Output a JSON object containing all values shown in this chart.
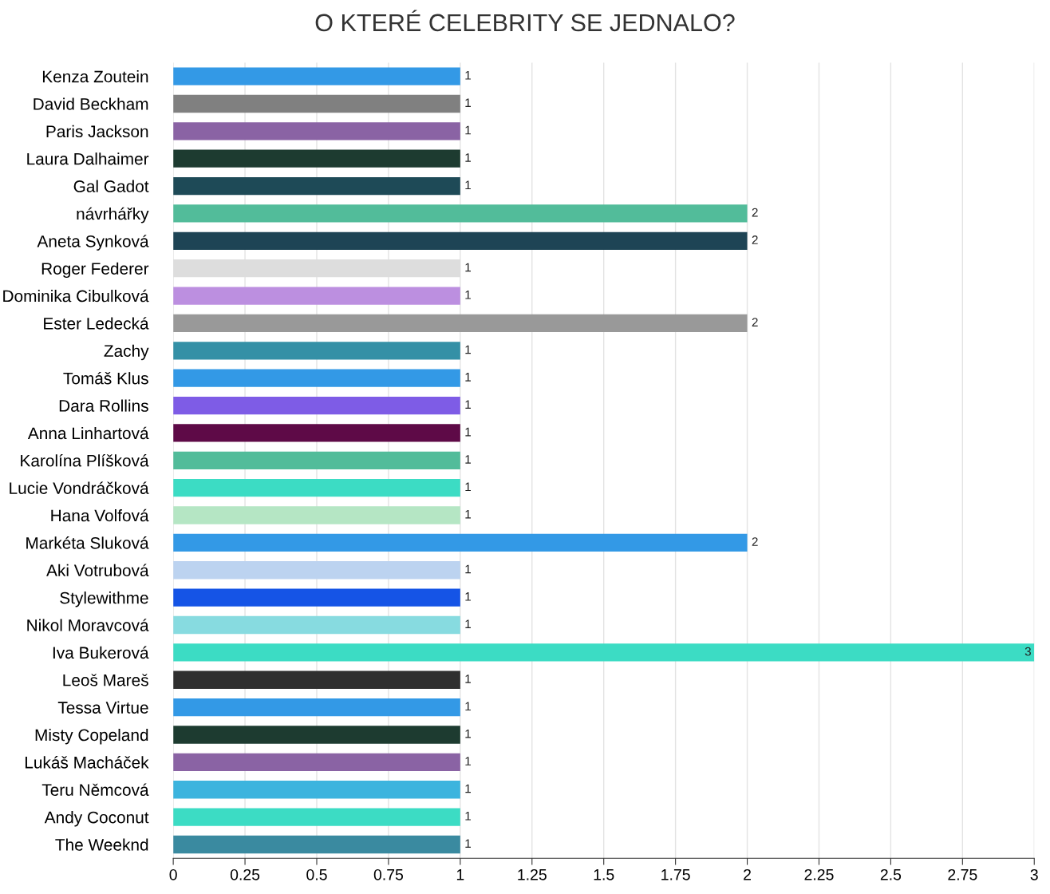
{
  "chart_data": {
    "type": "bar",
    "orientation": "horizontal",
    "title": "O KTERÉ CELEBRITY SE JEDNALO?",
    "categories": [
      "Kenza Zoutein",
      "David Beckham",
      "Paris Jackson",
      "Laura Dalhaimer",
      "Gal Gadot",
      "návrhářky",
      "Aneta Synková",
      "Roger Federer",
      "Dominika Cibulková",
      "Ester Ledecká",
      "Zachy",
      "Tomáš Klus",
      "Dara Rollins",
      "Anna Linhartová",
      "Karolína Plíšková",
      "Lucie Vondráčková",
      "Hana Volfová",
      "Markéta Sluková",
      "Aki Votrubová",
      "Stylewithme",
      "Nikol Moravcová",
      "Iva Bukerová",
      "Leoš Mareš",
      "Tessa Virtue",
      "Misty Copeland",
      "Lukáš Macháček",
      "Teru Němcová",
      "Andy Coconut",
      "The Weeknd"
    ],
    "values": [
      1,
      1,
      1,
      1,
      1,
      2,
      2,
      1,
      1,
      2,
      1,
      1,
      1,
      1,
      1,
      1,
      1,
      2,
      1,
      1,
      1,
      3,
      1,
      1,
      1,
      1,
      1,
      1,
      1
    ],
    "colors": [
      "#3399e6",
      "#808080",
      "#8a63a4",
      "#1d3b30",
      "#1e4a57",
      "#52bc9a",
      "#1e4455",
      "#dddddd",
      "#bc8fe0",
      "#999999",
      "#3490a6",
      "#3399e6",
      "#7e5ce6",
      "#5e0a47",
      "#52bc9a",
      "#3cdcc4",
      "#b5e6c4",
      "#3399e6",
      "#bcd3f0",
      "#1554e6",
      "#87dbe0",
      "#3cdcc4",
      "#2f2f2f",
      "#3399e6",
      "#1d3b30",
      "#8a63a4",
      "#3cb4de",
      "#3cdcc4",
      "#3a8aa0"
    ],
    "xlim": [
      0,
      3
    ],
    "xticks": [
      0,
      0.25,
      0.5,
      0.75,
      1,
      1.25,
      1.5,
      1.75,
      2,
      2.25,
      2.5,
      2.75,
      3
    ],
    "grid": "x",
    "data_labels": true
  }
}
